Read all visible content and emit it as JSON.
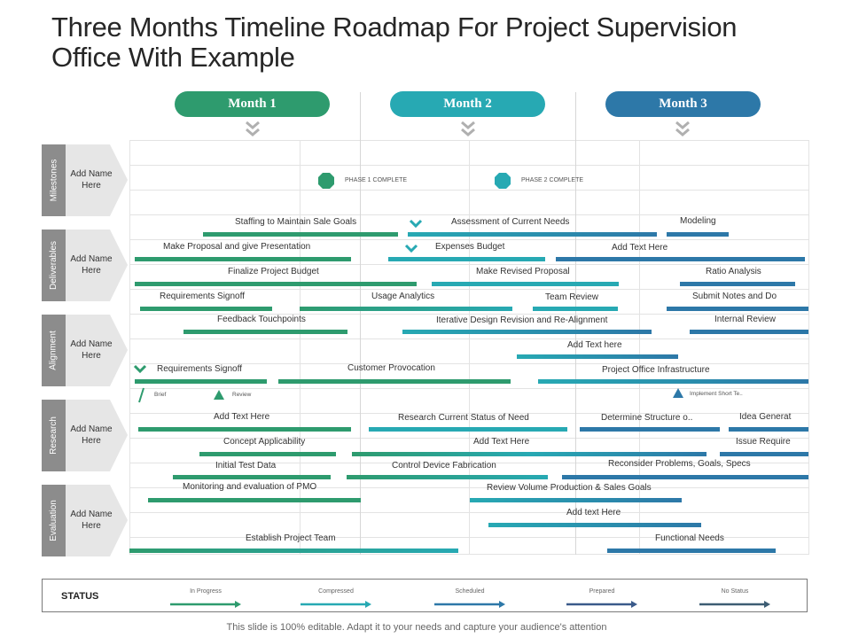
{
  "title": "Three Months Timeline Roadmap For Project Supervision Office With Example",
  "months": [
    "Month 1",
    "Month 2",
    "Month 3"
  ],
  "categories": [
    {
      "label": "Milestones",
      "name": "Add Name Here"
    },
    {
      "label": "Deliverables",
      "name": "Add Name Here"
    },
    {
      "label": "Alignment",
      "name": "Add Name Here"
    },
    {
      "label": "Research",
      "name": "Add Name Here"
    },
    {
      "label": "Evaluation",
      "name": "Add Name Here"
    }
  ],
  "milestones": [
    "PHASE 1 COMPLETE",
    "PHASE 2 COMPLETE"
  ],
  "tasks": [
    "Staffing to Maintain  Sale Goals",
    "Assessment of Current Needs",
    "Modeling",
    "Make Proposal and give Presentation",
    "Expenses Budget",
    "Add Text Here",
    "Finalize Project Budget",
    "Make Revised Proposal",
    "Ratio Analysis",
    "Requirements Signoff",
    "Usage Analytics",
    "Team Review",
    "Submit Notes and Do",
    "Feedback Touchpoints",
    "Iterative Design Revision and Re-Alignment",
    "Internal Review",
    "Add Text here",
    "Requirements Signoff",
    "Customer Provocation",
    "Project Office Infrastructure",
    "Add Text Here",
    "Research Current Status of Need",
    "Determine Structure o..",
    "Idea Generat",
    "Concept Applicability",
    "Add Text Here",
    "Issue Require",
    "Initial Test Data",
    "Control Device Fabrication",
    "Reconsider Problems, Goals, Specs",
    "Monitoring and evaluation of PMO",
    "Review Volume Production & Sales Goals",
    "Add text Here",
    "Establish Project Team",
    "Functional Needs"
  ],
  "legend_marks": [
    "Brief",
    "Review",
    "Implement  Short Te.."
  ],
  "status": {
    "title": "STATUS",
    "items": [
      {
        "label": "In Progress",
        "color": "#2e9b6e"
      },
      {
        "label": "Compressed",
        "color": "#27a9b3"
      },
      {
        "label": "Scheduled",
        "color": "#2d78a8"
      },
      {
        "label": "Prepared",
        "color": "#3a5a8a"
      },
      {
        "label": "No Status",
        "color": "#3d5d73"
      }
    ]
  },
  "colors": {
    "green": "#2e9b6e",
    "teal": "#27a9b3",
    "blue": "#2d78a8",
    "grey": "#8c8c8c"
  },
  "footer": "This slide is 100% editable. Adapt it to your needs and capture your audience's attention"
}
